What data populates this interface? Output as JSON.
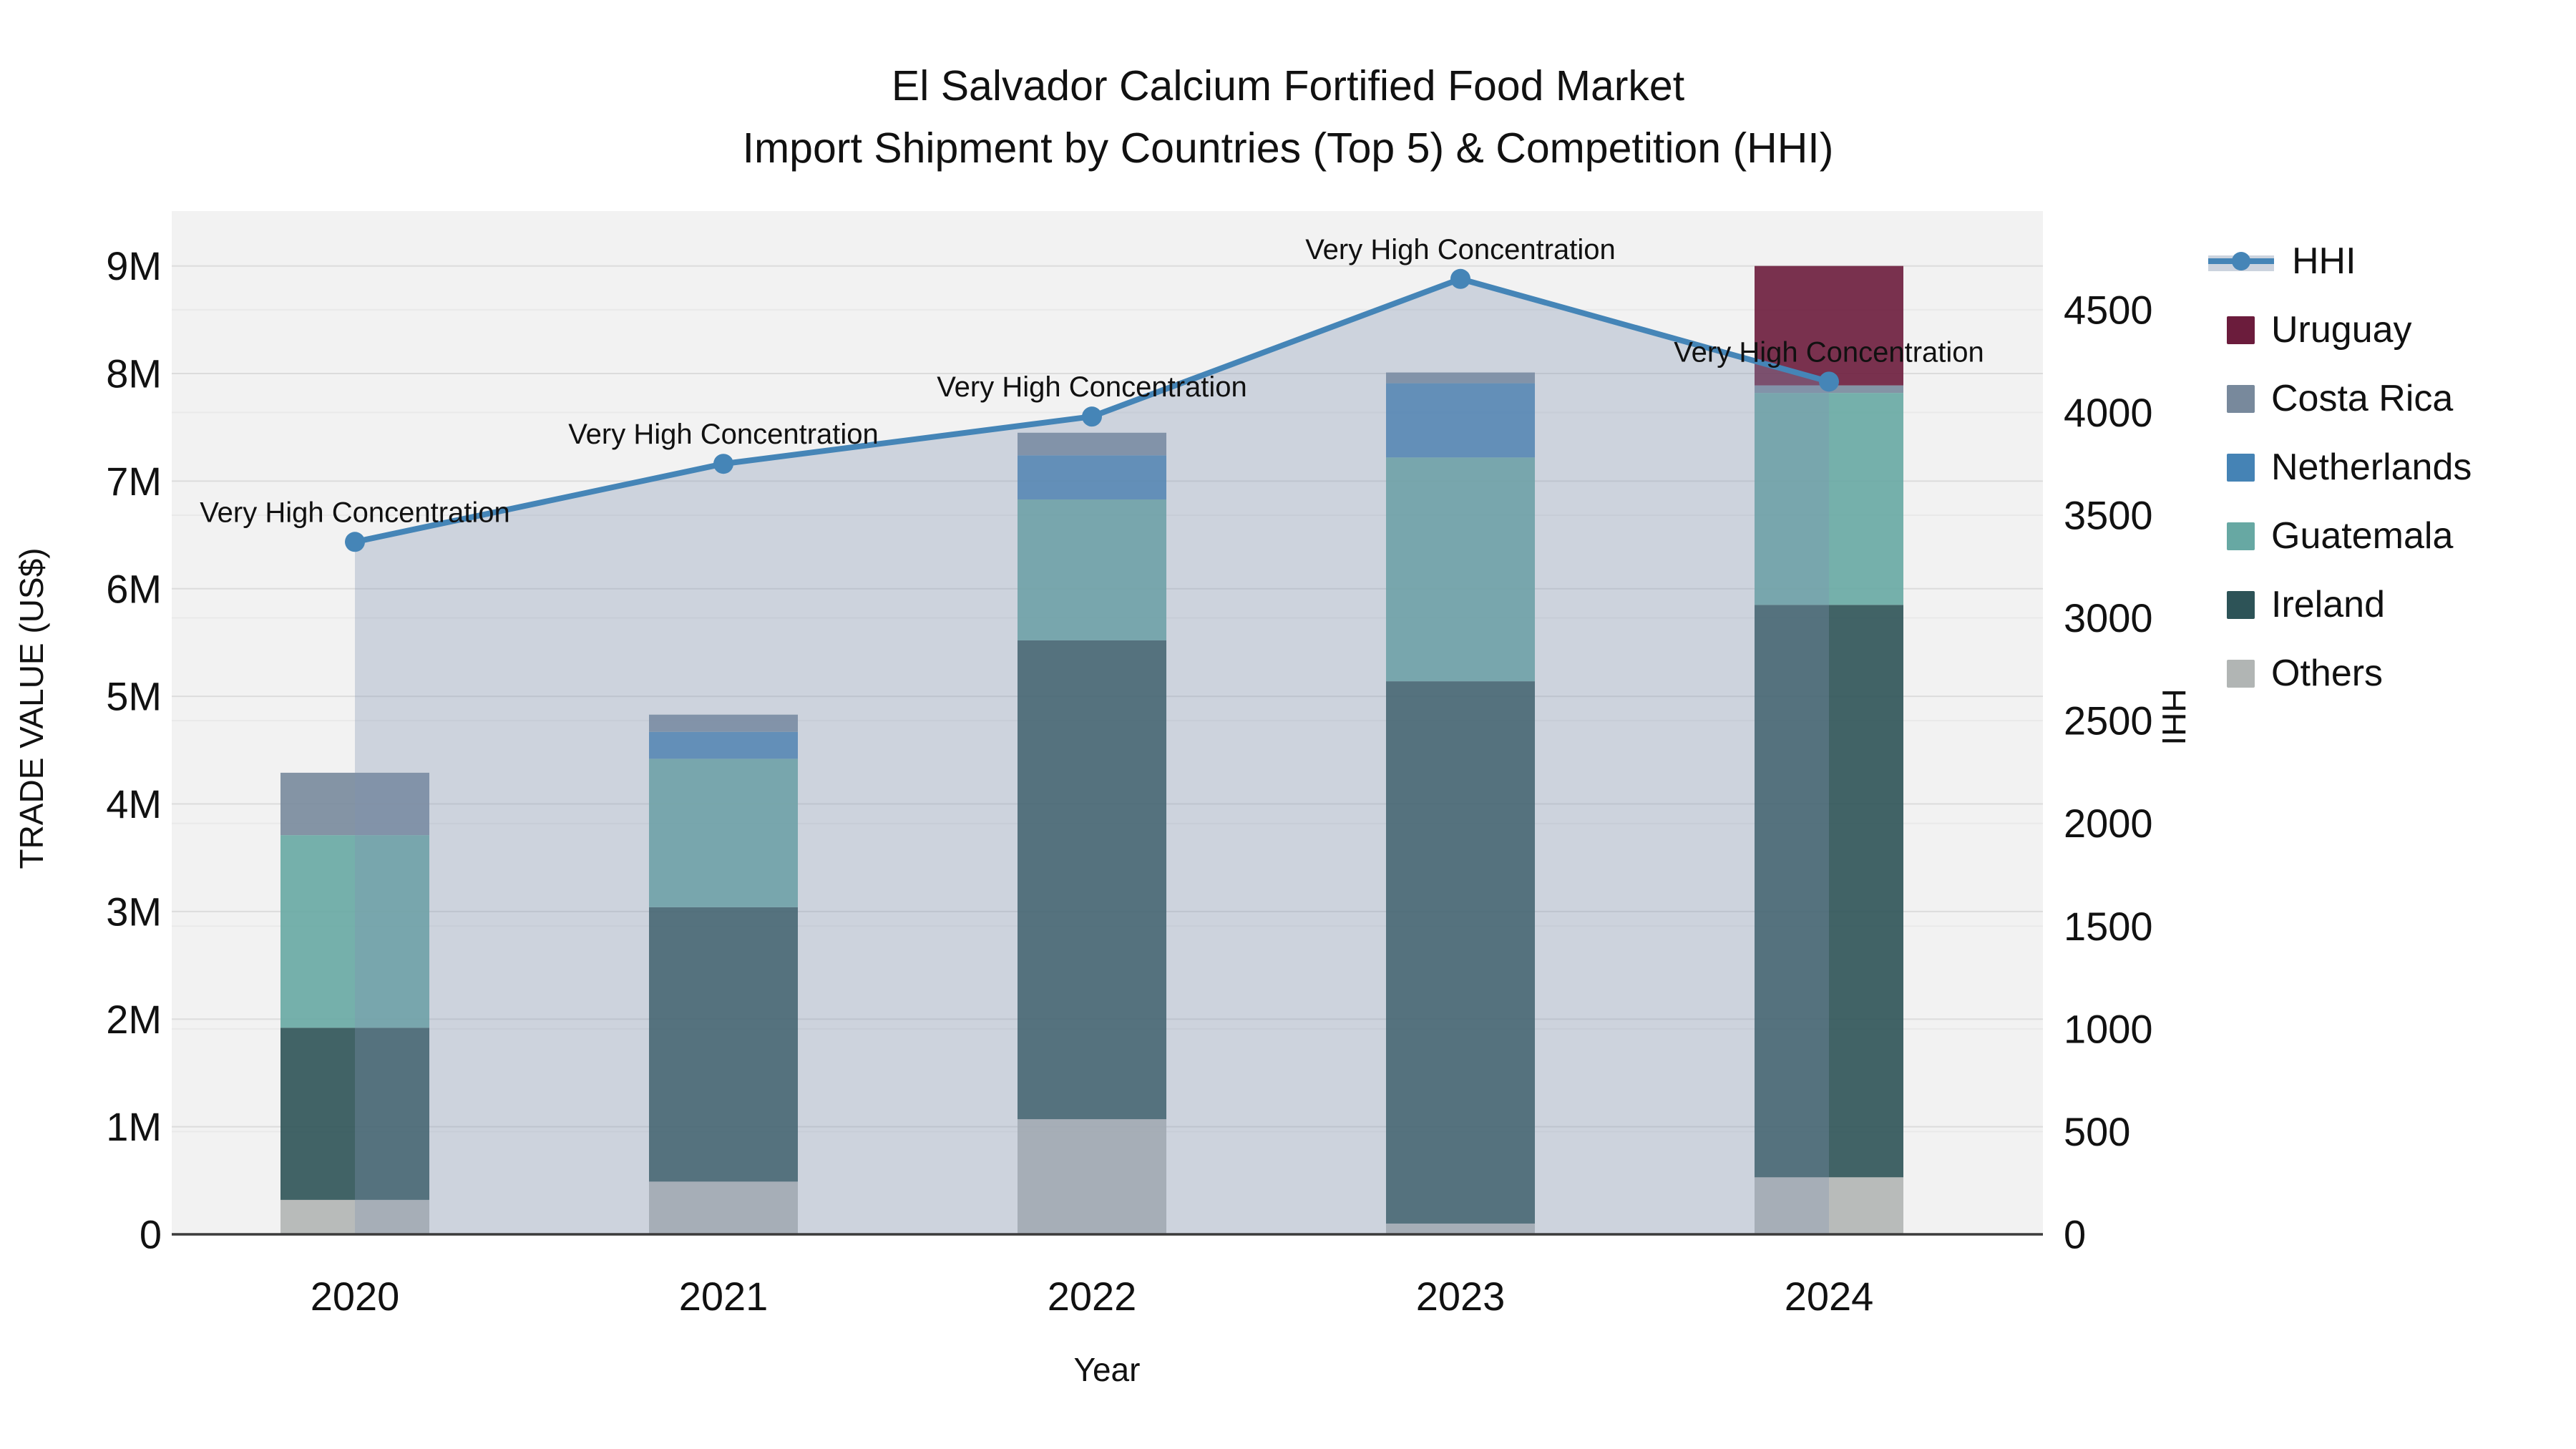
{
  "title": {
    "line1": "El Salvador Calcium Fortified Food Market",
    "line2": "Import Shipment by Countries (Top 5) & Competition (HHI)"
  },
  "chart_data": {
    "type": "combo-stacked-bar-line",
    "title_line1": "El Salvador Calcium Fortified Food Market",
    "title_line2": "Import Shipment by Countries (Top 5) & Competition (HHI)",
    "xlabel": "Year",
    "ylabel_left": "TRADE VALUE (US$)",
    "ylabel_right": "HHI",
    "categories": [
      "2020",
      "2021",
      "2022",
      "2023",
      "2024"
    ],
    "bar_value_unit": "millions USD",
    "stack_order_bottom_to_top": [
      "Others",
      "Ireland",
      "Guatemala",
      "Netherlands",
      "Costa Rica",
      "Uruguay"
    ],
    "series": [
      {
        "name": "Uruguay",
        "color": "#6b1c3c",
        "values": [
          0,
          0,
          0,
          0,
          1.11
        ]
      },
      {
        "name": "Costa Rica",
        "color": "#78899c",
        "values": [
          0.58,
          0.16,
          0.21,
          0.1,
          0.07
        ]
      },
      {
        "name": "Netherlands",
        "color": "#4583b5",
        "values": [
          0,
          0.25,
          0.41,
          0.69,
          0
        ]
      },
      {
        "name": "Guatemala",
        "color": "#67a8a3",
        "values": [
          1.79,
          1.38,
          1.31,
          2.08,
          1.97
        ]
      },
      {
        "name": "Ireland",
        "color": "#2d5357",
        "values": [
          1.6,
          2.55,
          4.45,
          5.04,
          5.32
        ]
      },
      {
        "name": "Others",
        "color": "#b1b5b4",
        "values": [
          0.32,
          0.49,
          1.07,
          0.1,
          0.53
        ]
      }
    ],
    "bar_totals": [
      4.29,
      4.83,
      7.45,
      8.01,
      9.0
    ],
    "hhi_line": {
      "name": "HHI",
      "color": "#4585b7",
      "area_fill": "rgba(128,146,178,0.32)",
      "values": [
        3370,
        3750,
        3980,
        4650,
        4150
      ],
      "annotations": [
        "Very High Concentration",
        "Very High Concentration",
        "Very High Concentration",
        "Very High Concentration",
        "Very High Concentration"
      ]
    },
    "y_left": {
      "tick_labels": [
        "0",
        "1M",
        "2M",
        "3M",
        "4M",
        "5M",
        "6M",
        "7M",
        "8M",
        "9M"
      ],
      "tick_values": [
        0,
        1,
        2,
        3,
        4,
        5,
        6,
        7,
        8,
        9
      ],
      "range_M": [
        0,
        9.51
      ]
    },
    "y_right": {
      "tick_labels": [
        "0",
        "500",
        "1000",
        "1500",
        "2000",
        "2500",
        "3000",
        "3500",
        "4000",
        "4500"
      ],
      "tick_values": [
        0,
        500,
        1000,
        1500,
        2000,
        2500,
        3000,
        3500,
        4000,
        4500
      ],
      "range": [
        0,
        4980
      ]
    },
    "legend": {
      "position": "right",
      "entries": [
        "HHI",
        "Uruguay",
        "Costa Rica",
        "Netherlands",
        "Guatemala",
        "Ireland",
        "Others"
      ]
    },
    "grid": true,
    "plot_background": "#f2f2f2",
    "axis_line_color": "#3b3b3b",
    "text_color": "#111111"
  }
}
